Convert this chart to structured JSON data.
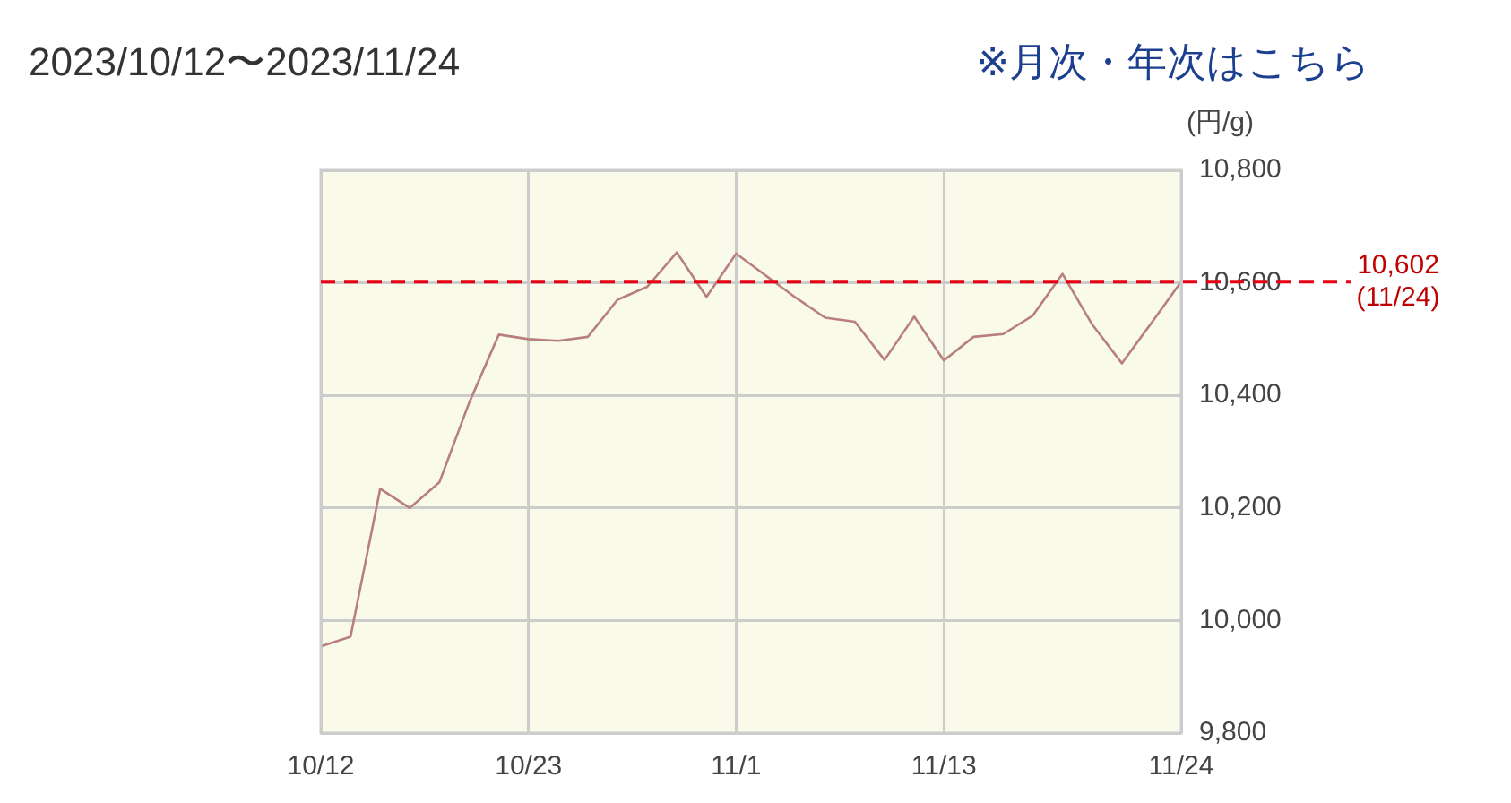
{
  "chart_data": {
    "type": "line",
    "title": "2023/10/12〜2023/11/24",
    "ylabel": "(円/g)",
    "annotations": [
      "※月次・年次はこちら"
    ],
    "categories": [
      "10/12",
      null,
      null,
      null,
      null,
      null,
      null,
      "10/23",
      null,
      null,
      null,
      null,
      null,
      null,
      "11/1",
      null,
      null,
      null,
      null,
      null,
      null,
      "11/13",
      null,
      null,
      null,
      null,
      null,
      null,
      null,
      "11/24"
    ],
    "series": [
      {
        "color": "#b87f7f",
        "values": [
          9954,
          9971,
          10234,
          10200,
          10246,
          10387,
          10508,
          10500,
          10497,
          10504,
          10570,
          10593,
          10654,
          10575,
          10652,
          10613,
          10574,
          10538,
          10531,
          10463,
          10540,
          10462,
          10504,
          10509,
          10542,
          10616,
          10526,
          10457,
          10529,
          10602
        ]
      }
    ],
    "ylim": [
      9800,
      10800
    ],
    "yticks": [
      {
        "value": 9800,
        "label": "9,800"
      },
      {
        "value": 10000,
        "label": "10,000"
      },
      {
        "value": 10200,
        "label": "10,200"
      },
      {
        "value": 10400,
        "label": "10,400"
      },
      {
        "value": 10600,
        "label": "10,600"
      },
      {
        "value": 10800,
        "label": "10,800"
      }
    ],
    "grid": true,
    "marker": "none",
    "line_style": "solid",
    "ref_lines": [
      {
        "axis": "y",
        "value": 10602,
        "label": "10,602 (11/24)",
        "color": "#e60012",
        "line_style": "dashed"
      }
    ]
  }
}
